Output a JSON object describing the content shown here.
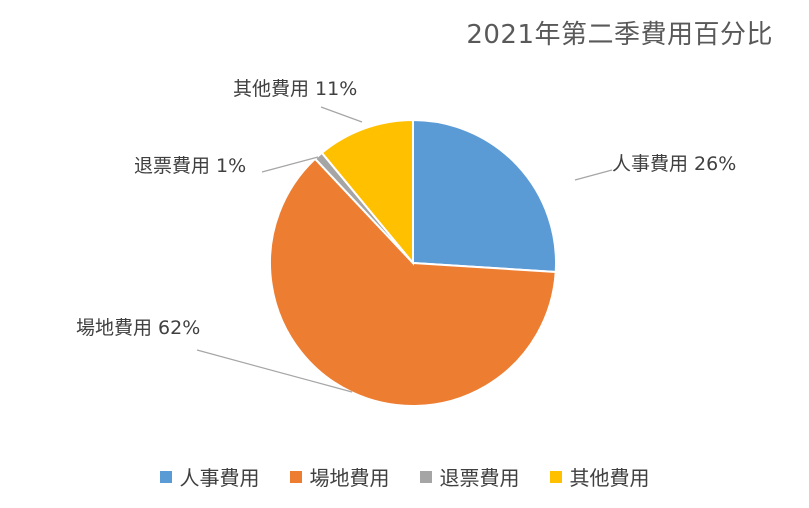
{
  "chart_data": {
    "type": "pie",
    "title": "2021年第二季費用百分比",
    "categories": [
      "人事費用",
      "場地費用",
      "退票費用",
      "其他費用"
    ],
    "values": [
      26,
      62,
      1,
      11
    ],
    "data_labels": [
      "人事費用 26%",
      "場地費用 62%",
      "退票費用 1%",
      "其他費用 11%"
    ],
    "colors": [
      "#5B9BD5",
      "#ED7D31",
      "#A5A5A5",
      "#FFC000"
    ],
    "legend": "bottom"
  }
}
